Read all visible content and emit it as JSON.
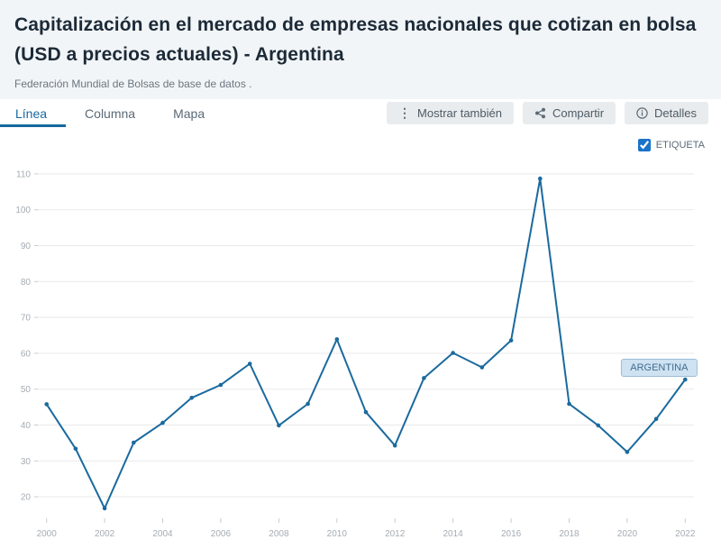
{
  "header": {
    "title": "Capitalización en el mercado de empresas nacionales que cotizan en bolsa (USD a precios actuales) - Argentina",
    "source": "Federación Mundial de Bolsas de base de datos ."
  },
  "tabs": [
    {
      "label": "Línea",
      "active": true
    },
    {
      "label": "Columna",
      "active": false
    },
    {
      "label": "Mapa",
      "active": false
    }
  ],
  "toolbar": {
    "mostrar": "Mostrar también",
    "compartir": "Compartir",
    "detalles": "Detalles"
  },
  "legend": {
    "etiqueta": "ETIQUETA",
    "checked": true
  },
  "series_label": "ARGENTINA",
  "colors": {
    "line": "#1a6a9e",
    "grid": "#e9e9e9",
    "tick": "#c6ccd2",
    "active_tab": "#16689f",
    "checkbox": "#1a73c8",
    "pill_bg": "#cfe2f1",
    "pill_border": "#9cbcd6"
  },
  "chart_data": {
    "type": "line",
    "title": "Capitalización en el mercado de empresas nacionales que cotizan en bolsa (USD a precios actuales) - Argentina",
    "series_name": "Argentina",
    "x": [
      2000,
      2001,
      2002,
      2003,
      2004,
      2005,
      2006,
      2007,
      2008,
      2009,
      2010,
      2011,
      2012,
      2013,
      2014,
      2015,
      2016,
      2017,
      2018,
      2019,
      2020,
      2021,
      2022
    ],
    "values": [
      45.8,
      33.4,
      16.8,
      35.1,
      40.6,
      47.6,
      51.2,
      57.1,
      39.9,
      45.9,
      63.9,
      43.6,
      34.3,
      53.1,
      60.1,
      56.1,
      63.6,
      108.7,
      45.9,
      39.9,
      32.5,
      41.7,
      52.7
    ],
    "xticks": [
      2000,
      2002,
      2004,
      2006,
      2008,
      2010,
      2012,
      2014,
      2016,
      2018,
      2020,
      2022
    ],
    "yticks": [
      110,
      100,
      90,
      80,
      70,
      60,
      50,
      40,
      30,
      20
    ],
    "xlim": [
      1999.7,
      2022.3
    ],
    "ylim": [
      14,
      113
    ],
    "grid": true,
    "legend_position": "top-right",
    "xlabel": "",
    "ylabel": "",
    "color": "#1a6a9e",
    "grid_color": "#e9e9e9",
    "label_anchor": {
      "x": 2021.1,
      "y": 56
    }
  }
}
